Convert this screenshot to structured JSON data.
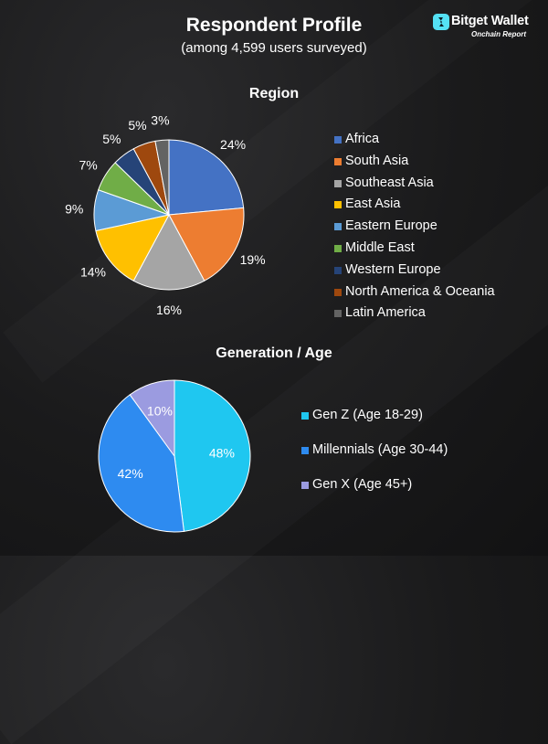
{
  "header": {
    "title": "Respondent Profile",
    "subtitle": "(among 4,599 users surveyed)"
  },
  "brand": {
    "name": "Bitget Wallet",
    "tagline": "Onchain Report",
    "logo_icon": "bitget-wallet-logo"
  },
  "chart_data": [
    {
      "type": "pie",
      "title": "Region",
      "categories": [
        "Africa",
        "South Asia",
        "Southeast Asia",
        "East Asia",
        "Eastern Europe",
        "Middle East",
        "Western Europe",
        "North America & Oceania",
        "Latin America"
      ],
      "values": [
        24,
        19,
        16,
        14,
        9,
        7,
        5,
        5,
        3
      ],
      "labels": [
        "24%",
        "19%",
        "16%",
        "14%",
        "9%",
        "7%",
        "5%",
        "5%",
        "3%"
      ],
      "colors": [
        "#4472C4",
        "#ED7D31",
        "#A5A5A5",
        "#FFC000",
        "#5B9BD5",
        "#70AD47",
        "#264478",
        "#9E480E",
        "#636363"
      ],
      "legend": "right",
      "data_labels": "outside"
    },
    {
      "type": "pie",
      "title": "Generation / Age",
      "categories": [
        "Gen Z (Age 18-29)",
        "Millennials (Age 30-44)",
        "Gen X (Age 45+)"
      ],
      "values": [
        48,
        42,
        10
      ],
      "labels": [
        "48%",
        "42%",
        "10%"
      ],
      "colors": [
        "#1FC7F0",
        "#2E8BF0",
        "#9B9BE0"
      ],
      "legend": "right",
      "data_labels": "inside"
    }
  ]
}
